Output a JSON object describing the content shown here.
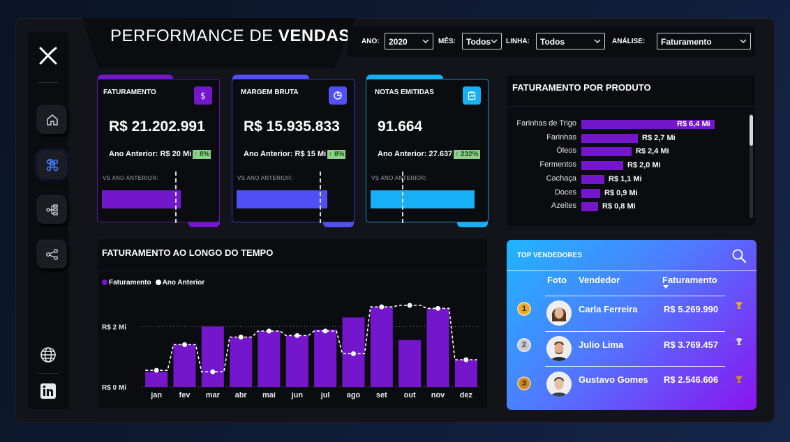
{
  "header": {
    "title_light": "PERFORMANCE DE ",
    "title_bold": "VENDAS"
  },
  "filters": [
    {
      "label": "ANO:",
      "value": "2020"
    },
    {
      "label": "MÊS:",
      "value": "Todos"
    },
    {
      "label": "LINHA:",
      "value": "Todos"
    },
    {
      "label": "ANÁLISE:",
      "value": "Faturamento"
    }
  ],
  "sidebar": {
    "items": [
      {
        "name": "logo-icon"
      },
      {
        "name": "home-icon"
      },
      {
        "name": "command-icon",
        "active": true
      },
      {
        "name": "hierarchy-icon"
      },
      {
        "name": "share-icon"
      },
      {
        "name": "globe-icon"
      },
      {
        "name": "linkedin-icon"
      }
    ]
  },
  "kpis": [
    {
      "title": "FATURAMENTO",
      "icon": "dollar-icon",
      "value": "R$ 21.202.991",
      "prev_label": "Ano Anterior: R$ 20 Mi",
      "pct": "↑ 8%",
      "vs_label": "VS ANO ANTERIOR:",
      "color": "#7417cc",
      "progress": 0.69
    },
    {
      "title": "MARGEM BRUTA",
      "icon": "pie-icon",
      "value": "R$ 15.935.833",
      "prev_label": "Ano Anterior: R$ 15 Mi",
      "pct": "↑ 8%",
      "vs_label": "VS ANO ANTERIOR:",
      "color": "#5050f5",
      "progress": 0.79
    },
    {
      "title": "NOTAS EMITIDAS",
      "icon": "clipboard-icon",
      "value": "91.664",
      "prev_label": "Ano Anterior: 27.637",
      "pct": "↑ 232%",
      "vs_label": "VS ANO ANTERIOR:",
      "color": "#17aff5",
      "progress": 0.91
    }
  ],
  "product_panel": {
    "title": "FATURAMENTO POR PRODUTO"
  },
  "time_panel": {
    "title": "FATURAMENTO AO LONGO DO TEMPO"
  },
  "chart_data": [
    {
      "type": "bar",
      "title": "FATURAMENTO POR PRODUTO",
      "orientation": "horizontal",
      "categories": [
        "Farinhas de Trigo",
        "Farinhas",
        "Óleos",
        "Fermentos",
        "Cachaça",
        "Doces",
        "Azeites"
      ],
      "values": [
        6.4,
        2.7,
        2.4,
        2.0,
        1.1,
        0.9,
        0.8
      ],
      "value_labels": [
        "R$ 6,4 Mi",
        "R$ 2,7 Mi",
        "R$ 2,4 Mi",
        "R$ 2,0 Mi",
        "R$ 1,1 Mi",
        "R$ 0,9 Mi",
        "R$ 0,8 Mi"
      ],
      "color": "#7417cc"
    },
    {
      "type": "bar",
      "title": "FATURAMENTO AO LONGO DO TEMPO",
      "categories": [
        "jan",
        "fev",
        "mar",
        "abr",
        "mai",
        "jun",
        "jul",
        "ago",
        "set",
        "out",
        "nov",
        "dez"
      ],
      "series": [
        {
          "name": "Faturamento",
          "type": "bar",
          "color": "#7417cc",
          "values": [
            0.5,
            1.4,
            2.0,
            1.65,
            1.85,
            1.7,
            1.9,
            2.3,
            2.65,
            1.55,
            2.6,
            0.9
          ]
        },
        {
          "name": "Ano Anterior",
          "type": "step-line",
          "color": "#ffffff",
          "values": [
            0.55,
            1.4,
            0.5,
            1.65,
            1.85,
            1.7,
            1.85,
            1.1,
            2.65,
            2.7,
            2.6,
            0.9
          ]
        }
      ],
      "yticks": [
        "R$ 0 Mi",
        "R$ 2 Mi"
      ],
      "ytick_values": [
        0,
        2
      ],
      "ylim": [
        0,
        3
      ],
      "grid": true,
      "legend": "top-left"
    }
  ],
  "sellers": {
    "title": "TOP VENDEDORES",
    "col_photo": "Foto",
    "col_seller": "Vendedor",
    "col_revenue": "Faturamento",
    "rows": [
      {
        "rank": "1",
        "name": "Carla Ferreira",
        "value": "R$ 5.269.990",
        "medal": "#e5a92a"
      },
      {
        "rank": "2",
        "name": "Julio Lima",
        "value": "R$ 3.769.457",
        "medal": "#c9c9cc"
      },
      {
        "rank": "3",
        "name": "Gustavo Gomes",
        "value": "R$ 2.546.606",
        "medal": "#c98a26"
      }
    ]
  }
}
